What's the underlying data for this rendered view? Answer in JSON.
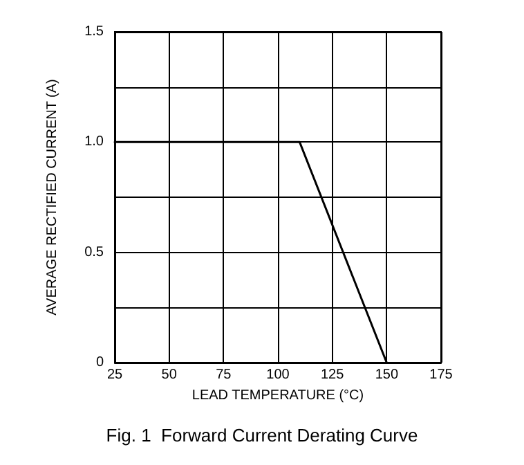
{
  "chart_data": {
    "type": "line",
    "title": "Fig. 1  Forward Current Derating Curve",
    "xlabel": "LEAD TEMPERATURE (°C)",
    "ylabel": "AVERAGE RECTIFIED CURRENT (A)",
    "x": [
      25,
      110,
      150
    ],
    "series": [
      {
        "color": "#000000",
        "values": [
          1,
          1,
          0
        ]
      }
    ],
    "xlim": [
      25,
      175
    ],
    "xticks": [
      25,
      50,
      75,
      100,
      125,
      150,
      175
    ],
    "ylim": [
      0,
      1.5
    ],
    "yticks": [
      0,
      {
        "value": 0.25,
        "label": null
      },
      {
        "value": 0.5,
        "label": "0.5"
      },
      {
        "value": 0.75,
        "label": null
      },
      {
        "value": 1,
        "label": "1.0"
      },
      {
        "value": 1.25,
        "label": null
      },
      {
        "value": 1.5,
        "label": "1.5"
      }
    ],
    "grid": true,
    "marker": "none",
    "line_style": "solid"
  }
}
